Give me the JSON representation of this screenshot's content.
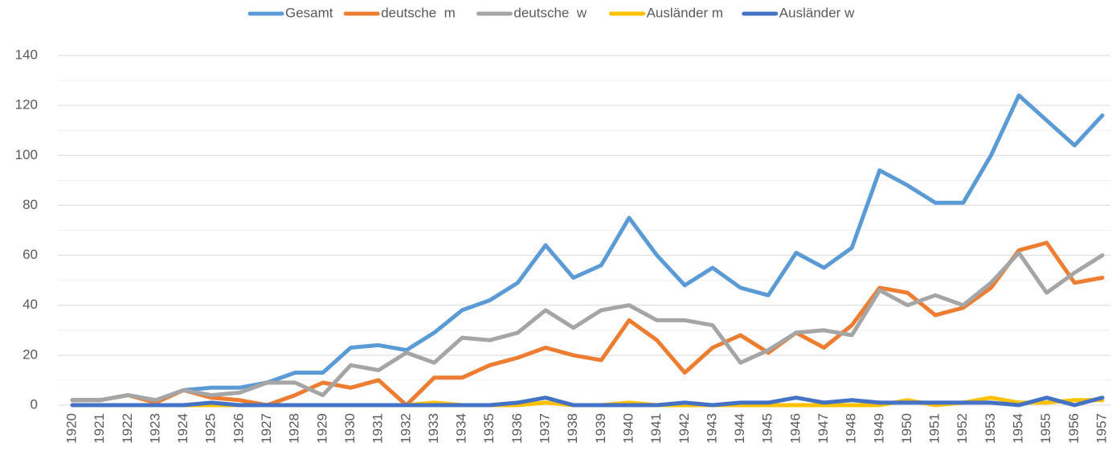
{
  "chart_data": {
    "type": "line",
    "categories": [
      "1920",
      "1921",
      "1922",
      "1923",
      "1924",
      "1925",
      "1926",
      "1927",
      "1928",
      "1929",
      "1930",
      "1931",
      "1932",
      "1933",
      "1934",
      "1935",
      "1936",
      "1937",
      "1938",
      "1939",
      "1940",
      "1941",
      "1942",
      "1943",
      "1944",
      "1945",
      "1946",
      "1947",
      "1948",
      "1949",
      "1950",
      "1951",
      "1952",
      "1953",
      "1954",
      "1955",
      "1956",
      "1957"
    ],
    "series": [
      {
        "name": "Gesamt",
        "color": "#5b9bd5",
        "values": [
          2,
          2,
          4,
          2,
          6,
          7,
          7,
          9,
          13,
          13,
          23,
          24,
          22,
          29,
          38,
          42,
          49,
          64,
          51,
          56,
          75,
          60,
          48,
          55,
          47,
          44,
          61,
          55,
          63,
          94,
          88,
          81,
          81,
          100,
          124,
          114,
          104,
          116
        ]
      },
      {
        "name": "deutsche  m",
        "color": "#ed7d31",
        "values": [
          2,
          2,
          4,
          1,
          6,
          3,
          2,
          0,
          4,
          9,
          7,
          10,
          0,
          11,
          11,
          16,
          19,
          23,
          20,
          18,
          34,
          26,
          13,
          23,
          28,
          21,
          29,
          23,
          32,
          47,
          45,
          36,
          39,
          47,
          62,
          65,
          49,
          51
        ]
      },
      {
        "name": "deutsche  w",
        "color": "#a5a5a5",
        "values": [
          2,
          2,
          4,
          2,
          6,
          4,
          5,
          9,
          9,
          4,
          16,
          14,
          21,
          17,
          27,
          26,
          29,
          38,
          31,
          38,
          40,
          34,
          34,
          32,
          17,
          22,
          29,
          30,
          28,
          46,
          40,
          44,
          40,
          49,
          61,
          45,
          53,
          60
        ]
      },
      {
        "name": "Ausländer m",
        "color": "#ffc000",
        "values": [
          0,
          0,
          0,
          0,
          0,
          0,
          0,
          0,
          0,
          0,
          0,
          0,
          0,
          1,
          0,
          0,
          0,
          1,
          0,
          0,
          1,
          0,
          0,
          0,
          0,
          0,
          0,
          0,
          0,
          0,
          2,
          0,
          1,
          3,
          1,
          1,
          2,
          2
        ]
      },
      {
        "name": "Ausländer w",
        "color": "#4472c4",
        "values": [
          0,
          0,
          0,
          0,
          0,
          1,
          0,
          0,
          0,
          0,
          0,
          0,
          0,
          0,
          0,
          0,
          1,
          3,
          0,
          0,
          0,
          0,
          1,
          0,
          1,
          1,
          3,
          1,
          2,
          1,
          1,
          1,
          1,
          1,
          0,
          3,
          0,
          3
        ]
      }
    ],
    "ylim": [
      0,
      140
    ],
    "yticks": [
      0,
      20,
      40,
      60,
      80,
      100,
      120,
      140
    ],
    "minor_yticks": [
      10,
      30,
      50,
      70,
      90,
      110,
      130
    ],
    "grid": true,
    "legend": "top"
  }
}
